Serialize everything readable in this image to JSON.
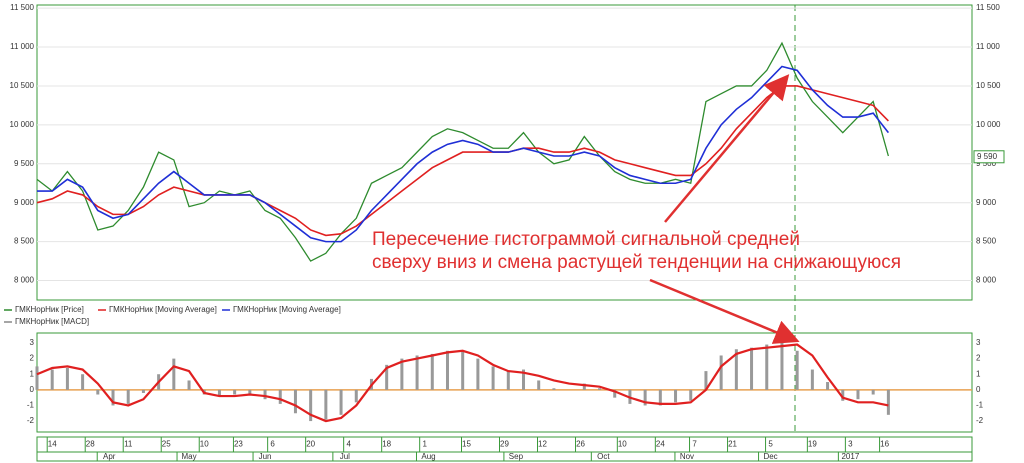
{
  "chart_data": [
    {
      "type": "line",
      "xlim": [
        0,
        246
      ],
      "ylim": [
        7750,
        11540
      ],
      "yticks": [
        {
          "value": 8000,
          "label": "8 000"
        },
        {
          "value": 8500,
          "label": "8 500"
        },
        {
          "value": 9000,
          "label": "9 000"
        },
        {
          "value": 9500,
          "label": "9 500"
        },
        {
          "value": 10000,
          "label": "10 000"
        },
        {
          "value": 10500,
          "label": "10 500"
        },
        {
          "value": 11000,
          "label": "11 000"
        },
        {
          "value": 11500,
          "label": "11 500"
        }
      ],
      "grid": true,
      "x": [
        0,
        4,
        8,
        12,
        16,
        20,
        24,
        28,
        32,
        36,
        40,
        44,
        48,
        52,
        56,
        60,
        64,
        68,
        72,
        76,
        80,
        84,
        88,
        92,
        96,
        100,
        104,
        108,
        112,
        116,
        120,
        124,
        128,
        132,
        136,
        140,
        144,
        148,
        152,
        156,
        160,
        164,
        168,
        172,
        176,
        180,
        184,
        188,
        192,
        196,
        200,
        204,
        208,
        212,
        216,
        220,
        224
      ],
      "series": [
        {
          "name": "ГМКНорНик [Price]",
          "color": "#2e8b2e",
          "values": [
            9300,
            9150,
            9400,
            9150,
            8650,
            8700,
            8900,
            9200,
            9650,
            9550,
            8950,
            9000,
            9150,
            9100,
            9150,
            8900,
            8800,
            8550,
            8250,
            8350,
            8600,
            8800,
            9250,
            9350,
            9450,
            9650,
            9850,
            9950,
            9900,
            9800,
            9700,
            9700,
            9900,
            9650,
            9500,
            9550,
            9850,
            9600,
            9400,
            9300,
            9250,
            9250,
            9300,
            9250,
            10300,
            10400,
            10500,
            10500,
            10700,
            11050,
            10600,
            10300,
            10100,
            9900,
            10100,
            10300,
            9600
          ]
        },
        {
          "name": "ГМКНорНик [Moving Average]",
          "color": "#e02020",
          "values": [
            9000,
            9050,
            9150,
            9100,
            8950,
            8850,
            8850,
            8950,
            9100,
            9200,
            9150,
            9100,
            9100,
            9100,
            9100,
            9000,
            8900,
            8800,
            8650,
            8580,
            8600,
            8700,
            8850,
            9000,
            9150,
            9300,
            9450,
            9550,
            9650,
            9650,
            9650,
            9650,
            9700,
            9700,
            9650,
            9650,
            9700,
            9650,
            9550,
            9500,
            9450,
            9400,
            9350,
            9350,
            9500,
            9700,
            9950,
            10150,
            10350,
            10500,
            10500,
            10450,
            10400,
            10350,
            10300,
            10250,
            10050
          ]
        },
        {
          "name": "ГМКНорНик [Moving Average]",
          "color": "#1f2fd6",
          "values": [
            9150,
            9150,
            9300,
            9200,
            8900,
            8800,
            8850,
            9050,
            9250,
            9400,
            9250,
            9100,
            9100,
            9100,
            9100,
            9000,
            8850,
            8700,
            8550,
            8500,
            8500,
            8650,
            8900,
            9100,
            9300,
            9500,
            9650,
            9750,
            9800,
            9750,
            9650,
            9650,
            9700,
            9650,
            9600,
            9600,
            9650,
            9600,
            9450,
            9350,
            9300,
            9250,
            9250,
            9300,
            9700,
            10000,
            10200,
            10350,
            10550,
            10750,
            10700,
            10450,
            10250,
            10100,
            10100,
            10150,
            9900
          ]
        }
      ],
      "last_price": {
        "value": 9590,
        "label": "9 590"
      },
      "annotation": [
        "Пересечение гистограммой сигнальной средней",
        "сверху вниз и смена растущей тенденции на снижающуюся"
      ]
    },
    {
      "type": "combo",
      "xlim": [
        0,
        246
      ],
      "ylim": [
        -2.7,
        3.64
      ],
      "yticks": [
        -2,
        -1,
        0,
        1,
        2,
        3
      ],
      "x": [
        0,
        4,
        8,
        12,
        16,
        20,
        24,
        28,
        32,
        36,
        40,
        44,
        48,
        52,
        56,
        60,
        64,
        68,
        72,
        76,
        80,
        84,
        88,
        92,
        96,
        100,
        104,
        108,
        112,
        116,
        120,
        124,
        128,
        132,
        136,
        140,
        144,
        148,
        152,
        156,
        160,
        164,
        168,
        172,
        176,
        180,
        184,
        188,
        192,
        196,
        200,
        204,
        208,
        212,
        216,
        220,
        224
      ],
      "legend": "ГМКНорНик [MACD]",
      "series": [
        {
          "type": "bar",
          "color": "#999999",
          "values": [
            1.5,
            1.3,
            1.4,
            1.0,
            -0.3,
            -1.0,
            -0.9,
            -0.2,
            1.0,
            2.0,
            0.6,
            -0.3,
            -0.4,
            -0.3,
            -0.3,
            -0.6,
            -0.9,
            -1.5,
            -2.0,
            -1.9,
            -1.6,
            -0.8,
            0.7,
            1.6,
            2.0,
            2.2,
            2.3,
            2.5,
            2.5,
            2.0,
            1.5,
            1.2,
            1.3,
            0.6,
            0.1,
            0.0,
            0.4,
            0.1,
            -0.5,
            -0.9,
            -1.0,
            -1.0,
            -0.8,
            -0.7,
            1.2,
            2.2,
            2.6,
            2.7,
            2.9,
            3.1,
            2.5,
            1.3,
            0.5,
            -0.7,
            -0.6,
            -0.3,
            -1.6
          ]
        },
        {
          "type": "line",
          "color": "#e02020",
          "values": [
            1.0,
            1.4,
            1.5,
            1.3,
            0.4,
            -0.8,
            -1.0,
            -0.6,
            0.5,
            1.5,
            1.2,
            -0.2,
            -0.4,
            -0.4,
            -0.3,
            -0.4,
            -0.6,
            -1.0,
            -1.6,
            -2.0,
            -1.8,
            -1.0,
            0.3,
            1.4,
            1.8,
            2.0,
            2.2,
            2.4,
            2.5,
            2.2,
            1.6,
            1.2,
            1.1,
            0.9,
            0.6,
            0.4,
            0.3,
            0.2,
            -0.1,
            -0.5,
            -0.8,
            -0.9,
            -0.9,
            -0.8,
            0.0,
            1.5,
            2.3,
            2.6,
            2.7,
            2.8,
            2.9,
            2.2,
            0.8,
            -0.5,
            -0.8,
            -0.8,
            -1.0
          ]
        }
      ],
      "xticks": [
        {
          "value": 4,
          "label": "14"
        },
        {
          "value": 14,
          "label": "28"
        },
        {
          "value": 24,
          "label": "11"
        },
        {
          "value": 34,
          "label": "25"
        },
        {
          "value": 44,
          "label": "10"
        },
        {
          "value": 53,
          "label": "23"
        },
        {
          "value": 62,
          "label": "6"
        },
        {
          "value": 72,
          "label": "20"
        },
        {
          "value": 82,
          "label": "4"
        },
        {
          "value": 92,
          "label": "18"
        },
        {
          "value": 102,
          "label": "1"
        },
        {
          "value": 113,
          "label": "15"
        },
        {
          "value": 123,
          "label": "29"
        },
        {
          "value": 133,
          "label": "12"
        },
        {
          "value": 143,
          "label": "26"
        },
        {
          "value": 154,
          "label": "10"
        },
        {
          "value": 164,
          "label": "24"
        },
        {
          "value": 173,
          "label": "7"
        },
        {
          "value": 183,
          "label": "21"
        },
        {
          "value": 193,
          "label": "5"
        },
        {
          "value": 204,
          "label": "19"
        },
        {
          "value": 214,
          "label": "3"
        },
        {
          "value": 223,
          "label": "16"
        }
      ],
      "xticks2": [
        {
          "value": 19,
          "label": "Apr"
        },
        {
          "value": 40,
          "label": "May"
        },
        {
          "value": 60,
          "label": "Jun"
        },
        {
          "value": 81,
          "label": "Jul"
        },
        {
          "value": 103,
          "label": "Aug"
        },
        {
          "value": 126,
          "label": "Sep"
        },
        {
          "value": 149,
          "label": "Oct"
        },
        {
          "value": 171,
          "label": "Nov"
        },
        {
          "value": 193,
          "label": "Dec"
        },
        {
          "value": 214,
          "label": "2017"
        }
      ]
    }
  ]
}
